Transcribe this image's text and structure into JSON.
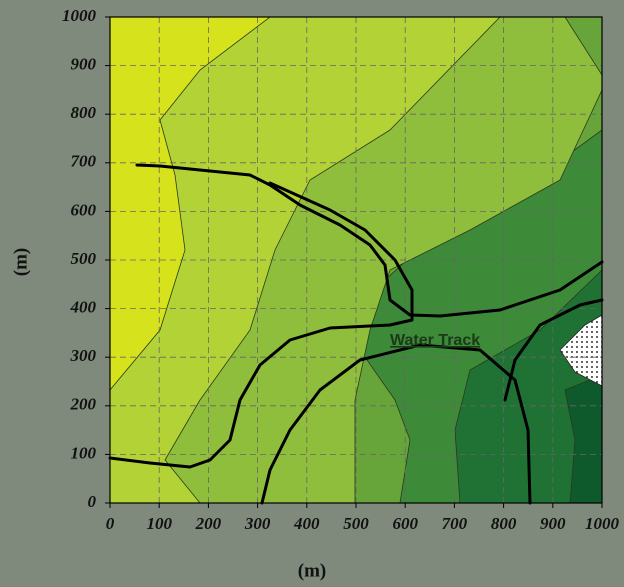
{
  "chart_data": {
    "type": "contour",
    "x_label": "(m)",
    "y_label": "(m)",
    "annotation": "Water Track",
    "xlim": [
      0,
      1000
    ],
    "ylim": [
      0,
      1000
    ],
    "xticks": [
      0,
      100,
      200,
      300,
      400,
      500,
      600,
      700,
      800,
      900,
      1000
    ],
    "yticks": [
      0,
      100,
      200,
      300,
      400,
      500,
      600,
      700,
      800,
      900,
      1000
    ],
    "grid": true
  }
}
